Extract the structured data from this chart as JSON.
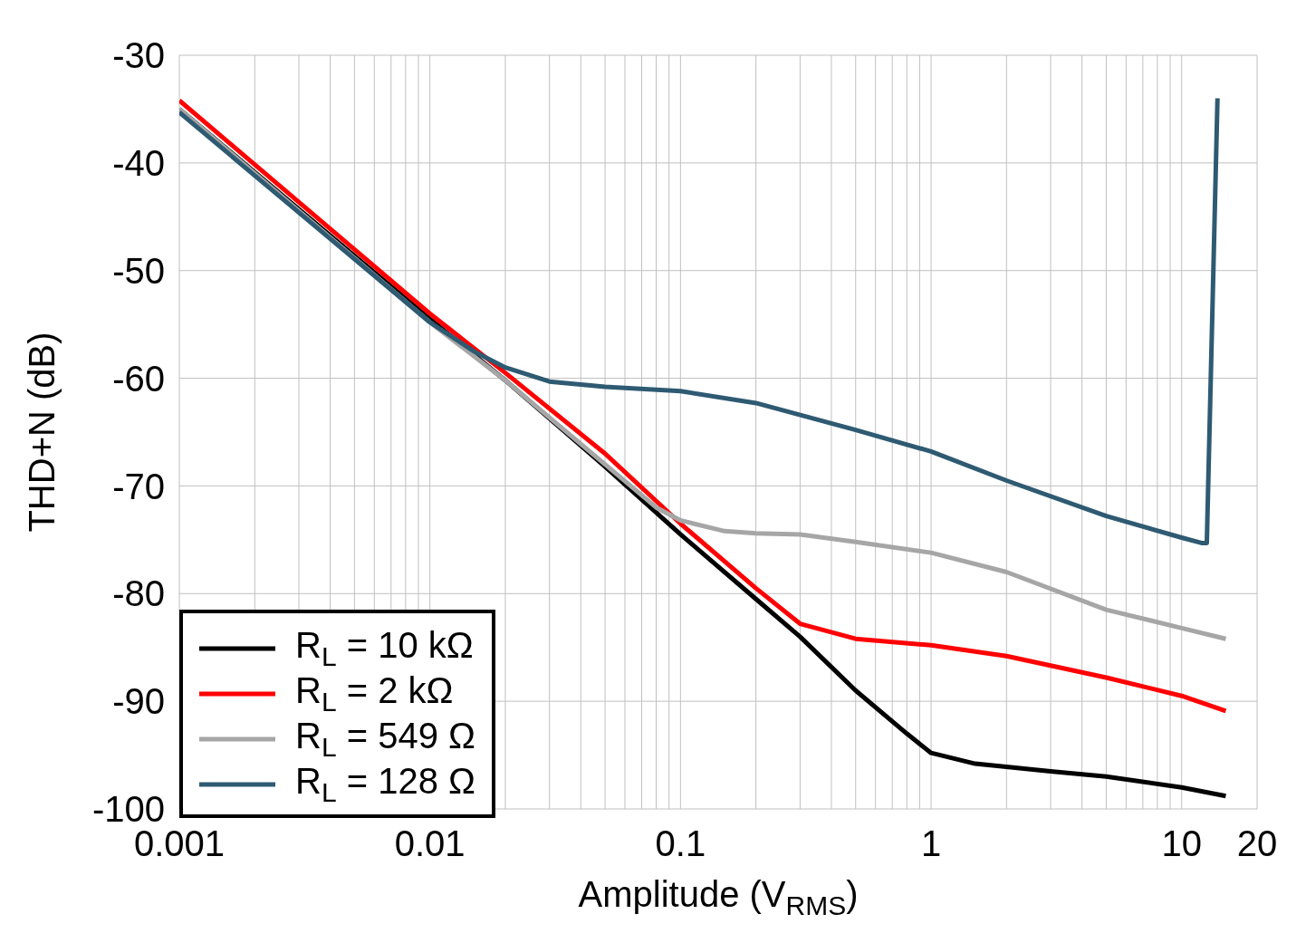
{
  "chart_data": {
    "type": "line",
    "xlabel": "Amplitude (V$_{RMS}$)",
    "ylabel": "THD+N (dB)",
    "log": "x",
    "grid": true,
    "legend": "bottom left",
    "line_style": "solid",
    "marker": "none",
    "xlim": [
      0.001,
      20
    ],
    "ylim": [
      -100,
      -30
    ],
    "xticks": [
      0.001,
      {
        "value": 0.002,
        "label": null
      },
      {
        "value": 0.003,
        "label": null
      },
      {
        "value": 0.004,
        "label": null
      },
      {
        "value": 0.005,
        "label": null
      },
      {
        "value": 0.006,
        "label": null
      },
      {
        "value": 0.007,
        "label": null
      },
      {
        "value": 0.008,
        "label": null
      },
      {
        "value": 0.009,
        "label": null
      },
      0.01,
      {
        "value": 0.02,
        "label": null
      },
      {
        "value": 0.03,
        "label": null
      },
      {
        "value": 0.04,
        "label": null
      },
      {
        "value": 0.05,
        "label": null
      },
      {
        "value": 0.06,
        "label": null
      },
      {
        "value": 0.07,
        "label": null
      },
      {
        "value": 0.08,
        "label": null
      },
      {
        "value": 0.09,
        "label": null
      },
      0.1,
      {
        "value": 0.2,
        "label": null
      },
      {
        "value": 0.3,
        "label": null
      },
      {
        "value": 0.4,
        "label": null
      },
      {
        "value": 0.5,
        "label": null
      },
      {
        "value": 0.6,
        "label": null
      },
      {
        "value": 0.7,
        "label": null
      },
      {
        "value": 0.8,
        "label": null
      },
      {
        "value": 0.9,
        "label": null
      },
      1,
      {
        "value": 2,
        "label": null
      },
      {
        "value": 3,
        "label": null
      },
      {
        "value": 4,
        "label": null
      },
      {
        "value": 5,
        "label": null
      },
      {
        "value": 6,
        "label": null
      },
      {
        "value": 7,
        "label": null
      },
      {
        "value": 8,
        "label": null
      },
      {
        "value": 9,
        "label": null
      },
      10,
      20
    ],
    "yticks": [
      -100,
      -90,
      -80,
      -70,
      -60,
      -50,
      -40,
      -30
    ],
    "series": [
      {
        "name": "R$_{L}$ = 10 kΩ",
        "color": "#000000",
        "x": [
          0.001,
          0.01,
          0.02,
          0.05,
          0.1,
          0.2,
          0.3,
          0.5,
          0.8,
          1,
          1.5,
          3,
          5,
          10,
          15
        ],
        "values": [
          -35,
          -54.5,
          -60.2,
          -68.2,
          -74.5,
          -80.5,
          -84,
          -89,
          -93,
          -94.8,
          -95.8,
          -96.5,
          -97,
          -98,
          -98.8
        ]
      },
      {
        "name": "R$_{L}$ = 2 kΩ",
        "color": "#ff0000",
        "x": [
          0.001,
          0.01,
          0.02,
          0.05,
          0.1,
          0.2,
          0.3,
          0.5,
          1,
          2,
          5,
          10,
          15
        ],
        "values": [
          -34.2,
          -54,
          -59.5,
          -67,
          -73.5,
          -79.5,
          -82.8,
          -84.2,
          -84.8,
          -85.8,
          -87.8,
          -89.5,
          -90.9
        ]
      },
      {
        "name": "R$_{L}$ = 549 Ω",
        "color": "#a6a6a6",
        "x": [
          0.001,
          0.01,
          0.02,
          0.05,
          0.08,
          0.1,
          0.15,
          0.2,
          0.3,
          0.5,
          1,
          2,
          5,
          10,
          15
        ],
        "values": [
          -35,
          -54.8,
          -60.2,
          -68,
          -72,
          -73.2,
          -74.2,
          -74.4,
          -74.5,
          -75.2,
          -76.2,
          -78,
          -81.5,
          -83.2,
          -84.2
        ]
      },
      {
        "name": "R$_{L}$ = 128 Ω",
        "color": "#2e5a72",
        "x": [
          0.001,
          0.01,
          0.015,
          0.02,
          0.03,
          0.05,
          0.1,
          0.2,
          0.5,
          1,
          2,
          5,
          10,
          12,
          12.6,
          13.9
        ],
        "values": [
          -35.3,
          -54.8,
          -57.5,
          -59,
          -60.3,
          -60.8,
          -61.2,
          -62.3,
          -64.8,
          -66.8,
          -69.5,
          -72.8,
          -74.8,
          -75.3,
          -75.3,
          -34
        ]
      }
    ]
  }
}
